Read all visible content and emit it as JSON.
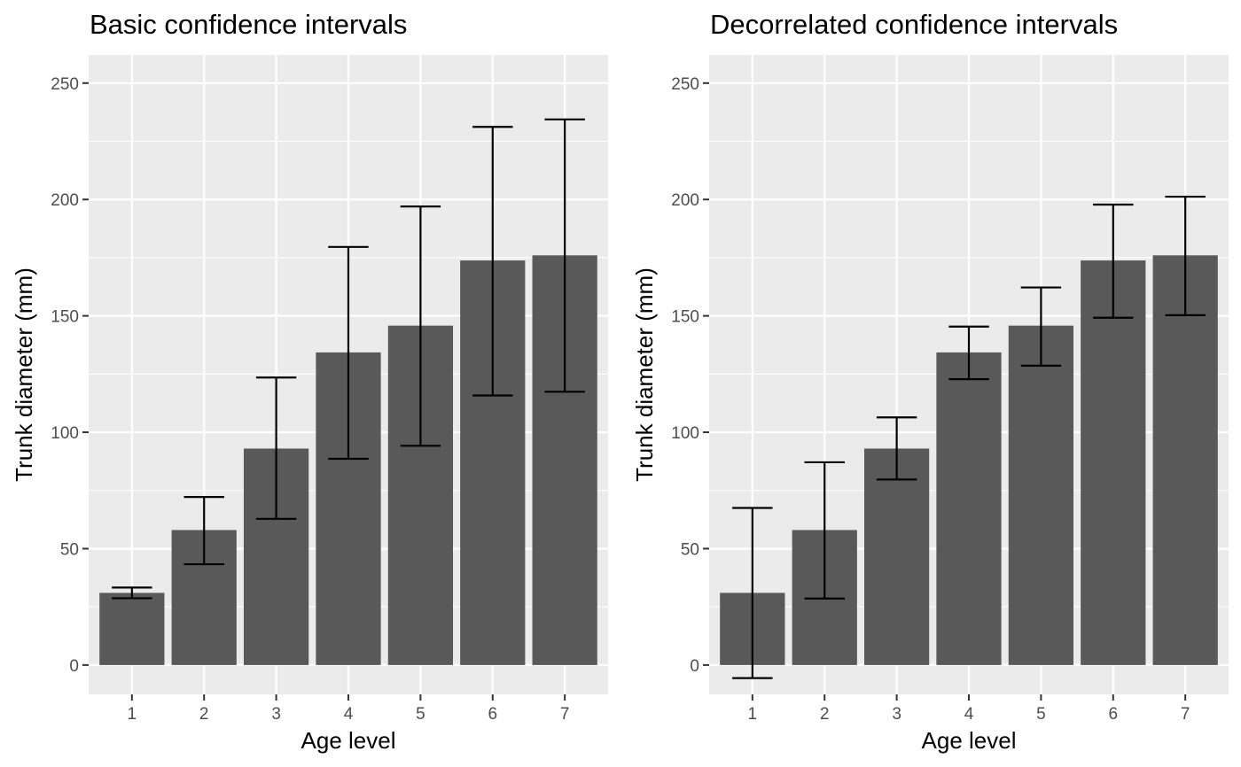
{
  "colors": {
    "panel_background": "#ebebeb",
    "grid_major": "#ffffff",
    "bar_fill": "#595959",
    "error_bar": "#000000",
    "tick_text": "#4d4d4d",
    "tick_mark": "#333333"
  },
  "chart_data": [
    {
      "type": "bar",
      "title": "Basic confidence intervals",
      "xlabel": "Age level",
      "ylabel": "Trunk diameter (mm)",
      "categories": [
        "1",
        "2",
        "3",
        "4",
        "5",
        "6",
        "7"
      ],
      "values": [
        31,
        58,
        93,
        134.3,
        145.8,
        173.8,
        176
      ],
      "error_low": [
        28.7,
        43.3,
        62.8,
        88.6,
        94.2,
        115.8,
        117.4
      ],
      "error_high": [
        33.3,
        72.2,
        123.5,
        179.6,
        197,
        231.2,
        234.4
      ],
      "ylim": [
        -12.6,
        262.1
      ],
      "yticks": [
        0,
        50,
        100,
        150,
        200,
        250
      ],
      "ytick_labels": [
        "0",
        "50",
        "100",
        "150",
        "200",
        "250"
      ],
      "grid": true
    },
    {
      "type": "bar",
      "title": "Decorrelated confidence intervals",
      "xlabel": "Age level",
      "ylabel": "Trunk diameter (mm)",
      "categories": [
        "1",
        "2",
        "3",
        "4",
        "5",
        "6",
        "7"
      ],
      "values": [
        31,
        58,
        93,
        134.3,
        145.8,
        173.8,
        176
      ],
      "error_low": [
        -5.6,
        28.6,
        79.7,
        122.8,
        128.6,
        149.2,
        150.3
      ],
      "error_high": [
        67.5,
        87.1,
        106.4,
        145.4,
        162.2,
        197.8,
        201.2
      ],
      "ylim": [
        -12.6,
        262.1
      ],
      "yticks": [
        0,
        50,
        100,
        150,
        200,
        250
      ],
      "ytick_labels": [
        "0",
        "50",
        "100",
        "150",
        "200",
        "250"
      ],
      "grid": true
    }
  ]
}
